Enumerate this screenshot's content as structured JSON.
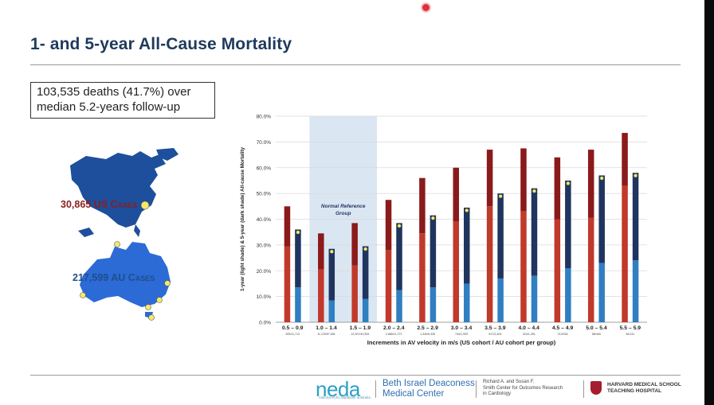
{
  "title": "1- and 5-year All-Cause Mortality",
  "summary": {
    "line1": "103,535 deaths (41.7%) over",
    "line2": "median 5.2-years follow-up"
  },
  "map": {
    "us_label": "30,865 US Cases",
    "au_label": "217,599 AU Cases"
  },
  "colors": {
    "title": "#1f3a5c",
    "us_red_light": "#c0392b",
    "us_red_dark": "#8b1a1a",
    "au_blue_light": "#2f7fc1",
    "au_blue_dark": "#1f355f",
    "reference_band": "#dbe6f3"
  },
  "chart_data": {
    "type": "bar",
    "ylabel": "1-year (light shade) & 5-year (dark shade) All-cause Mortality",
    "xlabel": "Increments in AV velocity in m/s (US cohort / AU cohort per group)",
    "ylim": [
      0,
      80
    ],
    "yticks": [
      "0.0%",
      "10.0%",
      "20.0%",
      "30.0%",
      "40.0%",
      "50.0%",
      "60.0%",
      "70.0%",
      "80.0%"
    ],
    "grid": "horizontal",
    "annotation": "Normal Reference Group",
    "categories": [
      "0.5 – 0.9",
      "1.0 – 1.4",
      "1.5 – 1.9",
      "2.0 – 2.4",
      "2.5 – 2.9",
      "3.0 – 3.4",
      "3.5 – 3.9",
      "4.0 – 4.4",
      "4.5 – 4.9",
      "5.0 – 5.4",
      "5.5 – 5.9"
    ],
    "counts": [
      "925/11,713",
      "11,125/57,581",
      "10,307/42,593",
      "2,886/11,727",
      "1,340/5,335",
      "744/1,909",
      "517/2,404",
      "324/1,291",
      "212/934",
      "88/460",
      "30/131"
    ],
    "reference_categories": [
      1,
      2
    ],
    "series": [
      {
        "cohort": "US",
        "one_year": [
          29.5,
          20.5,
          22.0,
          28.0,
          34.5,
          39.0,
          45.0,
          43.0,
          40.0,
          40.5,
          53.0
        ],
        "five_year": [
          45.0,
          34.5,
          38.5,
          47.5,
          56.0,
          60.0,
          67.0,
          67.5,
          64.0,
          67.0,
          73.5
        ]
      },
      {
        "cohort": "AU",
        "one_year": [
          13.5,
          8.5,
          9.0,
          12.5,
          13.5,
          15.0,
          17.0,
          18.0,
          21.0,
          23.0,
          24.0
        ],
        "five_year": [
          36.0,
          28.5,
          29.5,
          38.5,
          41.5,
          44.5,
          50.0,
          52.0,
          55.0,
          57.0,
          58.0
        ]
      }
    ]
  },
  "footer": {
    "neda": "neda",
    "neda_sub": "national echo database australia",
    "bidmc_line1": "Beth Israel Deaconess",
    "bidmc_line2": "Medical Center",
    "smith_line1": "Richard A. and Susan F.",
    "smith_line2": "Smith Center for Outcomes Research",
    "smith_line3": "in Cardiology",
    "harvard_line1": "HARVARD MEDICAL SCHOOL",
    "harvard_line2": "TEACHING HOSPITAL"
  }
}
